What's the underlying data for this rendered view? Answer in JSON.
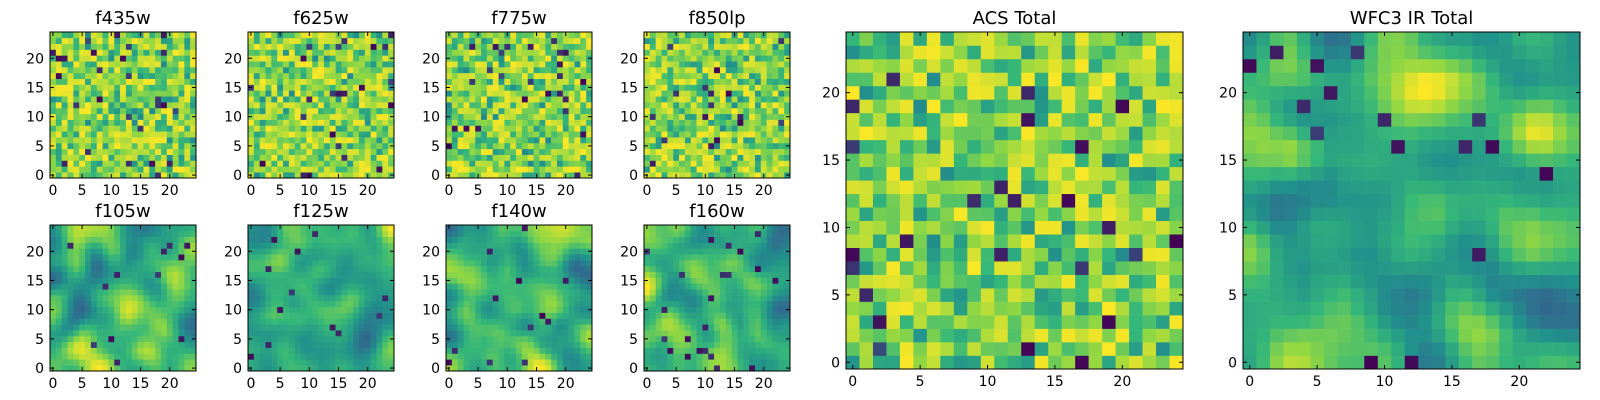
{
  "chart_data": {
    "type": "heatmap",
    "colormap": [
      "#440154",
      "#31688e",
      "#21918c",
      "#35b779",
      "#90d743",
      "#fde725"
    ],
    "grid_size": 25,
    "panels": [
      {
        "title": "f435w",
        "xticks": [
          "0",
          "5",
          "10",
          "15",
          "20"
        ],
        "yticks": [
          "0",
          "5",
          "10",
          "15",
          "20"
        ],
        "xlim": [
          -0.5,
          24.5
        ],
        "ylim": [
          -0.5,
          24.5
        ],
        "pattern": "fine-noise"
      },
      {
        "title": "f625w",
        "xticks": [
          "0",
          "5",
          "10",
          "15",
          "20"
        ],
        "yticks": [
          "0",
          "5",
          "10",
          "15",
          "20"
        ],
        "xlim": [
          -0.5,
          24.5
        ],
        "ylim": [
          -0.5,
          24.5
        ],
        "pattern": "fine-noise"
      },
      {
        "title": "f775w",
        "xticks": [
          "0",
          "5",
          "10",
          "15",
          "20"
        ],
        "yticks": [
          "0",
          "5",
          "10",
          "15",
          "20"
        ],
        "xlim": [
          -0.5,
          24.5
        ],
        "ylim": [
          -0.5,
          24.5
        ],
        "pattern": "fine-noise"
      },
      {
        "title": "f850lp",
        "xticks": [
          "0",
          "5",
          "10",
          "15",
          "20"
        ],
        "yticks": [
          "0",
          "5",
          "10",
          "15",
          "20"
        ],
        "xlim": [
          -0.5,
          24.5
        ],
        "ylim": [
          -0.5,
          24.5
        ],
        "pattern": "fine-noise"
      },
      {
        "title": "f105w",
        "xticks": [
          "0",
          "5",
          "10",
          "15",
          "20"
        ],
        "yticks": [
          "0",
          "5",
          "10",
          "15",
          "20"
        ],
        "xlim": [
          -0.5,
          24.5
        ],
        "ylim": [
          -0.5,
          24.5
        ],
        "pattern": "smooth-blobs"
      },
      {
        "title": "f125w",
        "xticks": [
          "0",
          "5",
          "10",
          "15",
          "20"
        ],
        "yticks": [
          "0",
          "5",
          "10",
          "15",
          "20"
        ],
        "xlim": [
          -0.5,
          24.5
        ],
        "ylim": [
          -0.5,
          24.5
        ],
        "pattern": "smooth-blobs"
      },
      {
        "title": "f140w",
        "xticks": [
          "0",
          "5",
          "10",
          "15",
          "20"
        ],
        "yticks": [
          "0",
          "5",
          "10",
          "15",
          "20"
        ],
        "xlim": [
          -0.5,
          24.5
        ],
        "ylim": [
          -0.5,
          24.5
        ],
        "pattern": "smooth-blobs"
      },
      {
        "title": "f160w",
        "xticks": [
          "0",
          "5",
          "10",
          "15",
          "20"
        ],
        "yticks": [
          "0",
          "5",
          "10",
          "15",
          "20"
        ],
        "xlim": [
          -0.5,
          24.5
        ],
        "ylim": [
          -0.5,
          24.5
        ],
        "pattern": "smooth-blobs"
      },
      {
        "title": "ACS Total",
        "xticks": [
          "0",
          "5",
          "10",
          "15",
          "20"
        ],
        "yticks": [
          "0",
          "5",
          "10",
          "15",
          "20"
        ],
        "xlim": [
          -0.5,
          24.5
        ],
        "ylim": [
          -0.5,
          24.5
        ],
        "pattern": "fine-noise"
      },
      {
        "title": "WFC3 IR Total",
        "xticks": [
          "0",
          "5",
          "10",
          "15",
          "20"
        ],
        "yticks": [
          "0",
          "5",
          "10",
          "15",
          "20"
        ],
        "xlim": [
          -0.5,
          24.5
        ],
        "ylim": [
          -0.5,
          24.5
        ],
        "pattern": "smooth-blobs"
      }
    ]
  }
}
